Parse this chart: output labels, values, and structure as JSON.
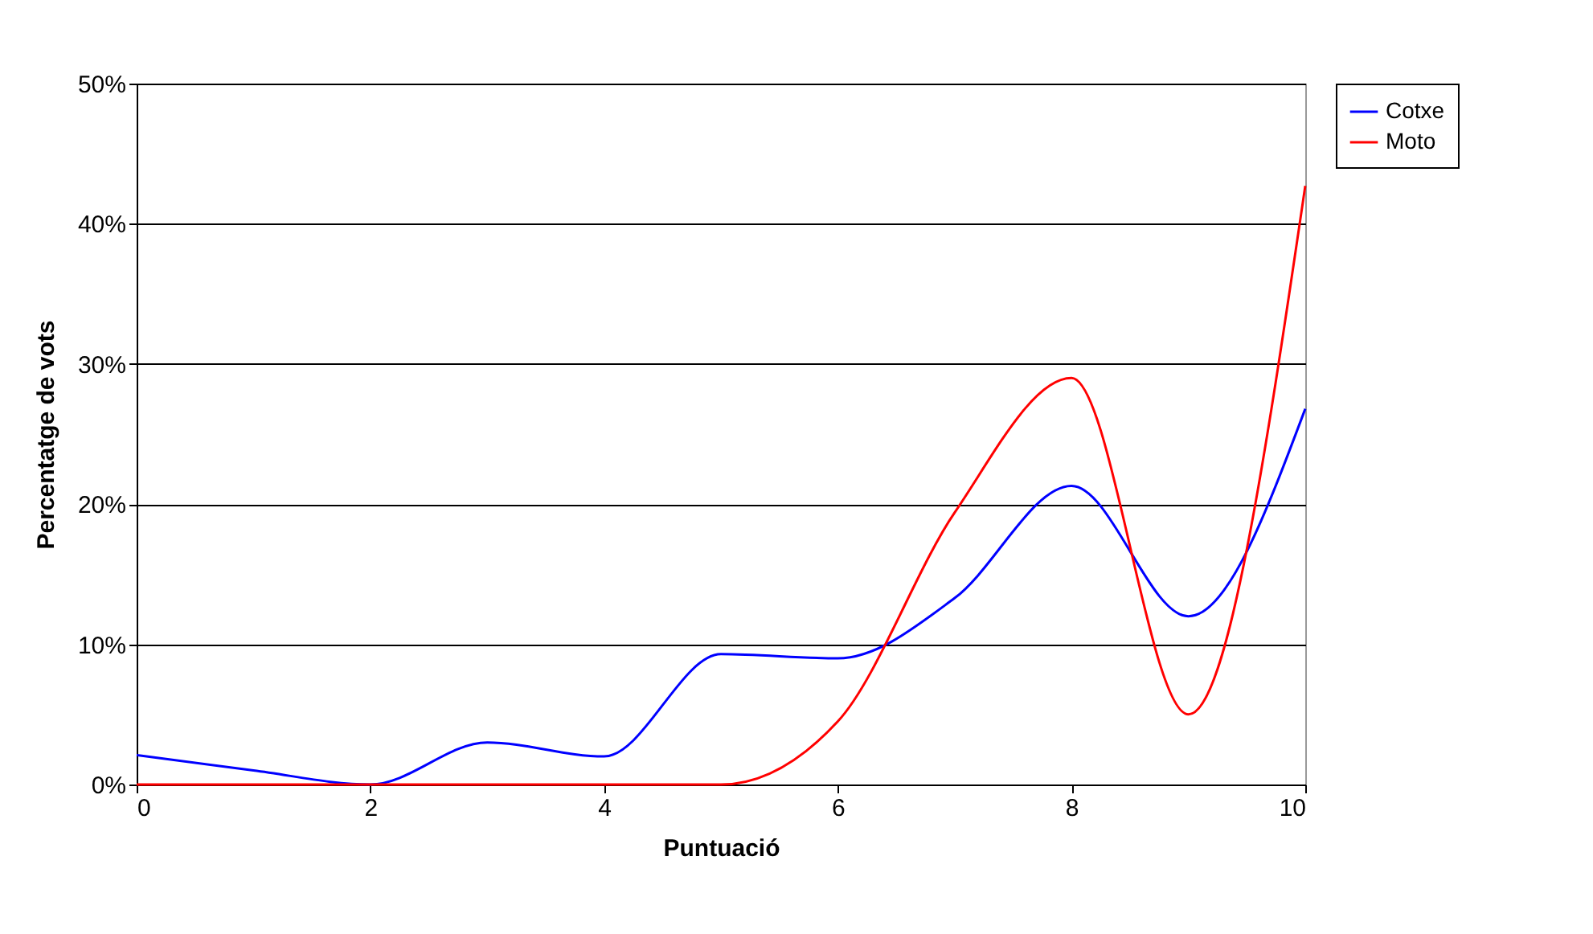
{
  "chart_data": {
    "type": "line",
    "xlabel": "Puntuació",
    "ylabel": "Percentatge de vots",
    "x": [
      0,
      1,
      2,
      3,
      4,
      5,
      6,
      7,
      8,
      9,
      10
    ],
    "series": [
      {
        "name": "Cotxe",
        "color": "#0000ff",
        "values": [
          2.1,
          1,
          0,
          3,
          2,
          9.3,
          9,
          13.3,
          21.3,
          12,
          26.8
        ]
      },
      {
        "name": "Moto",
        "color": "#ff0000",
        "values": [
          0,
          0,
          0,
          0,
          0,
          0,
          4.5,
          19.4,
          29,
          5,
          42.7
        ]
      }
    ],
    "xlim": [
      0,
      10
    ],
    "xticks": [
      0,
      2,
      4,
      6,
      8,
      10
    ],
    "ylim": [
      0,
      50
    ],
    "yticks": [
      {
        "value": 0,
        "label": "0%"
      },
      {
        "value": 10,
        "label": "10%"
      },
      {
        "value": 20,
        "label": "20%"
      },
      {
        "value": 30,
        "label": "30%"
      },
      {
        "value": 40,
        "label": "40%"
      },
      {
        "value": 50,
        "label": "50%"
      }
    ],
    "grid": "y",
    "legend": "right",
    "marker": "none",
    "line_style": "solid"
  }
}
